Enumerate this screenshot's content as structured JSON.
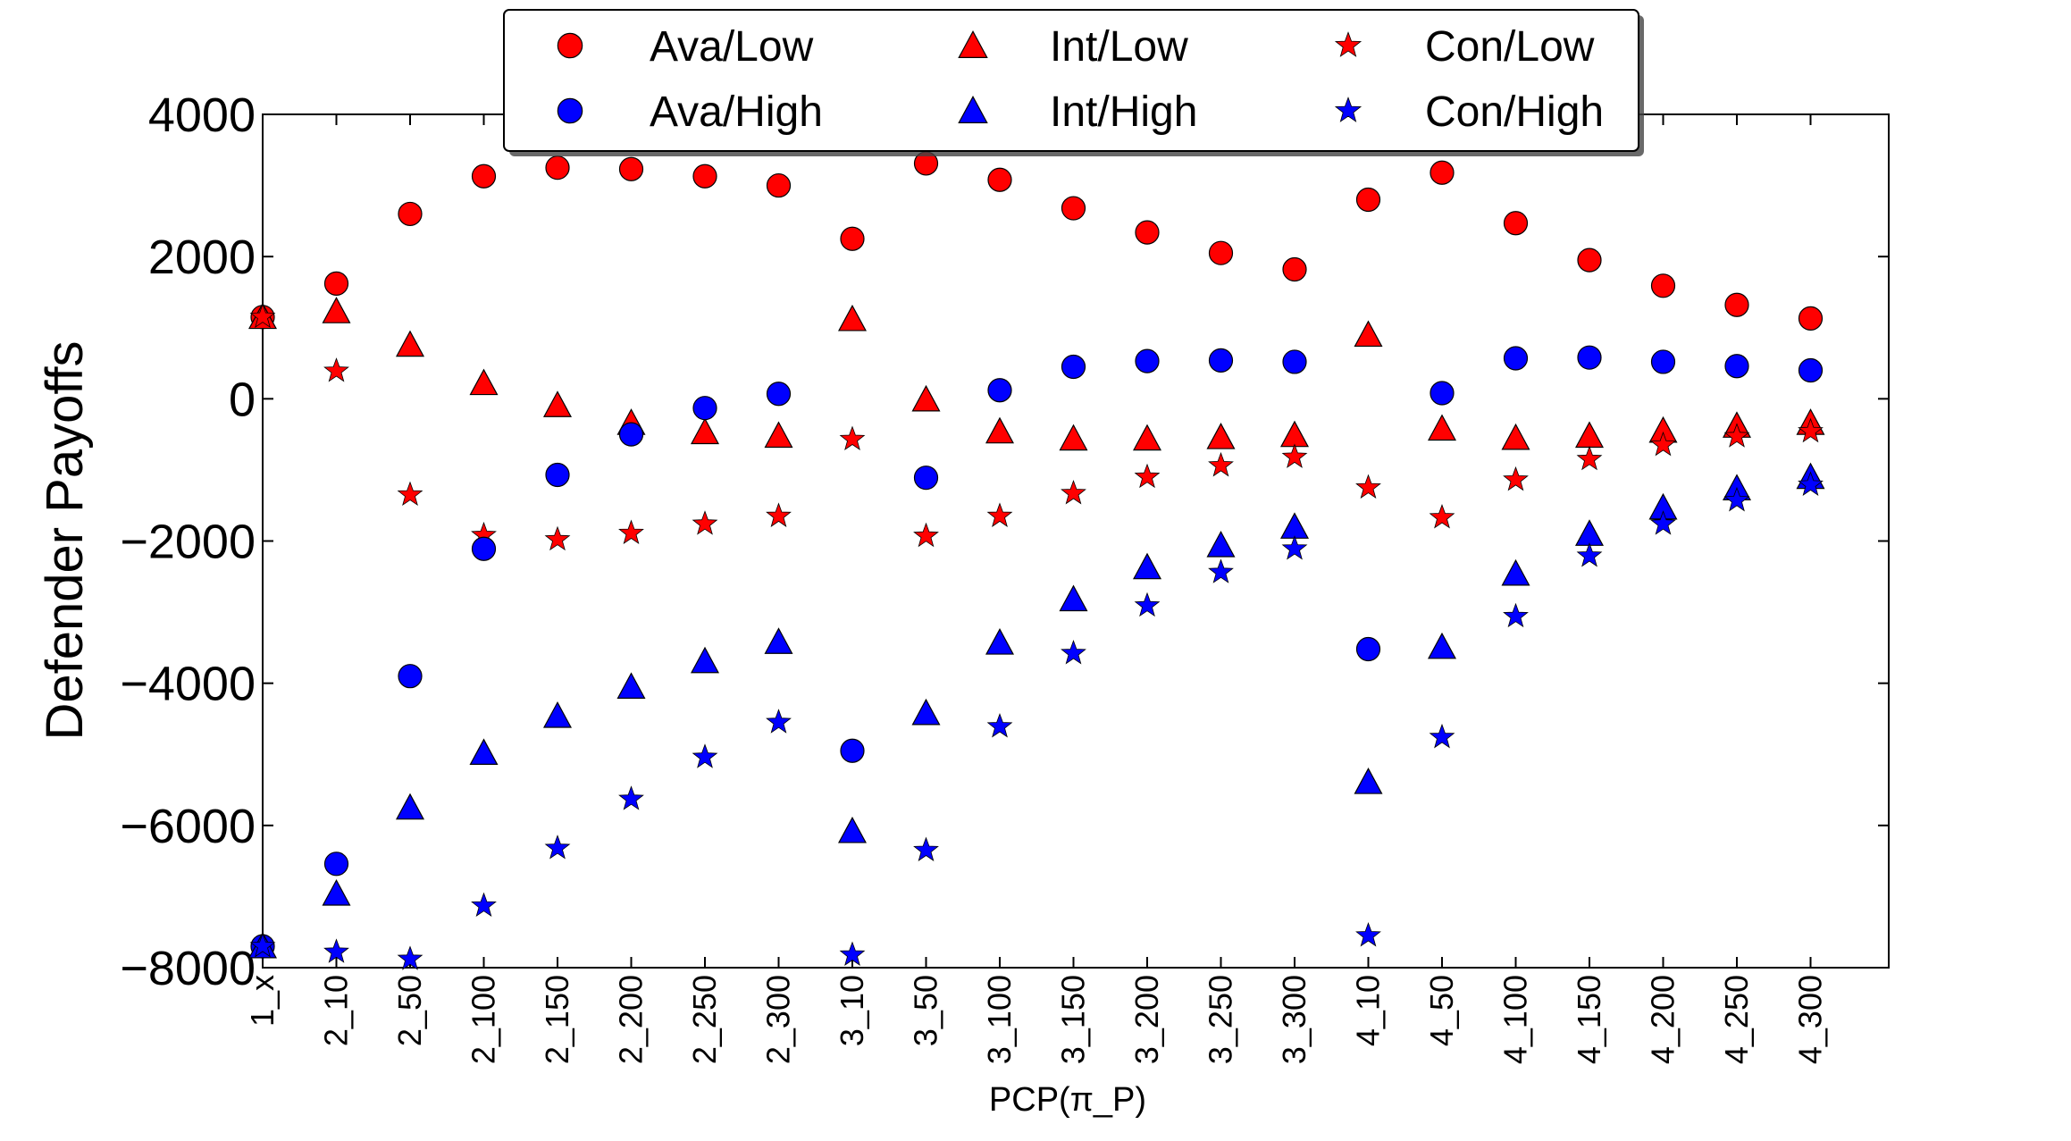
{
  "chart_data": {
    "type": "scatter",
    "title": "",
    "xlabel": "PCP(π_P)",
    "ylabel": "Defender Payoffs",
    "ylim": [
      -8000,
      4000
    ],
    "yticks": [
      4000,
      2000,
      0,
      -2000,
      -4000,
      -6000,
      -8000
    ],
    "ytick_labels": [
      "4000",
      "2000",
      "0",
      "−2000",
      "−4000",
      "−6000",
      "−8000"
    ],
    "grid": false,
    "legend_position": "top-center",
    "categories": [
      "1_x",
      "2_10",
      "2_50",
      "2_100",
      "2_150",
      "2_200",
      "2_250",
      "2_300",
      "3_10",
      "3_50",
      "3_100",
      "3_150",
      "3_200",
      "3_250",
      "3_300",
      "4_10",
      "4_50",
      "4_100",
      "4_150",
      "4_200",
      "4_250",
      "4_300"
    ],
    "series": [
      {
        "name": "Ava/Low",
        "marker": "circle",
        "color": "#ff0000",
        "values": [
          1150,
          1620,
          2600,
          3130,
          3250,
          3230,
          3130,
          3000,
          2250,
          3310,
          3080,
          2680,
          2340,
          2050,
          1820,
          2800,
          3180,
          2470,
          1950,
          1590,
          1320,
          1130
        ]
      },
      {
        "name": "Int/Low",
        "marker": "triangle",
        "color": "#ff0000",
        "values": [
          1150,
          1230,
          760,
          220,
          -90,
          -340,
          -470,
          -520,
          1120,
          -10,
          -460,
          -560,
          -560,
          -540,
          -510,
          900,
          -420,
          -550,
          -520,
          -450,
          -380,
          -340
        ]
      },
      {
        "name": "Con/Low",
        "marker": "star",
        "color": "#ff0000",
        "values": [
          1150,
          390,
          -1350,
          -1920,
          -1980,
          -1890,
          -1760,
          -1650,
          -570,
          -1930,
          -1650,
          -1330,
          -1100,
          -940,
          -820,
          -1250,
          -1670,
          -1140,
          -850,
          -650,
          -530,
          -460
        ]
      },
      {
        "name": "Ava/High",
        "marker": "circle",
        "color": "#0000ff",
        "values": [
          -7700,
          -6540,
          -3900,
          -2110,
          -1070,
          -500,
          -130,
          70,
          -4950,
          -1110,
          120,
          450,
          530,
          540,
          520,
          -3520,
          80,
          570,
          580,
          520,
          460,
          400
        ]
      },
      {
        "name": "Int/High",
        "marker": "triangle",
        "color": "#0000ff",
        "values": [
          -7700,
          -6960,
          -5750,
          -4980,
          -4460,
          -4050,
          -3690,
          -3420,
          -6080,
          -4420,
          -3430,
          -2820,
          -2370,
          -2060,
          -1800,
          -5390,
          -3490,
          -2460,
          -1900,
          -1530,
          -1260,
          -1100
        ]
      },
      {
        "name": "Con/High",
        "marker": "star",
        "color": "#0000ff",
        "values": [
          -7700,
          -7780,
          -7880,
          -7130,
          -6320,
          -5630,
          -5040,
          -4550,
          -7820,
          -6350,
          -4610,
          -3580,
          -2910,
          -2440,
          -2110,
          -7550,
          -4760,
          -3060,
          -2210,
          -1760,
          -1430,
          -1210
        ]
      }
    ]
  }
}
